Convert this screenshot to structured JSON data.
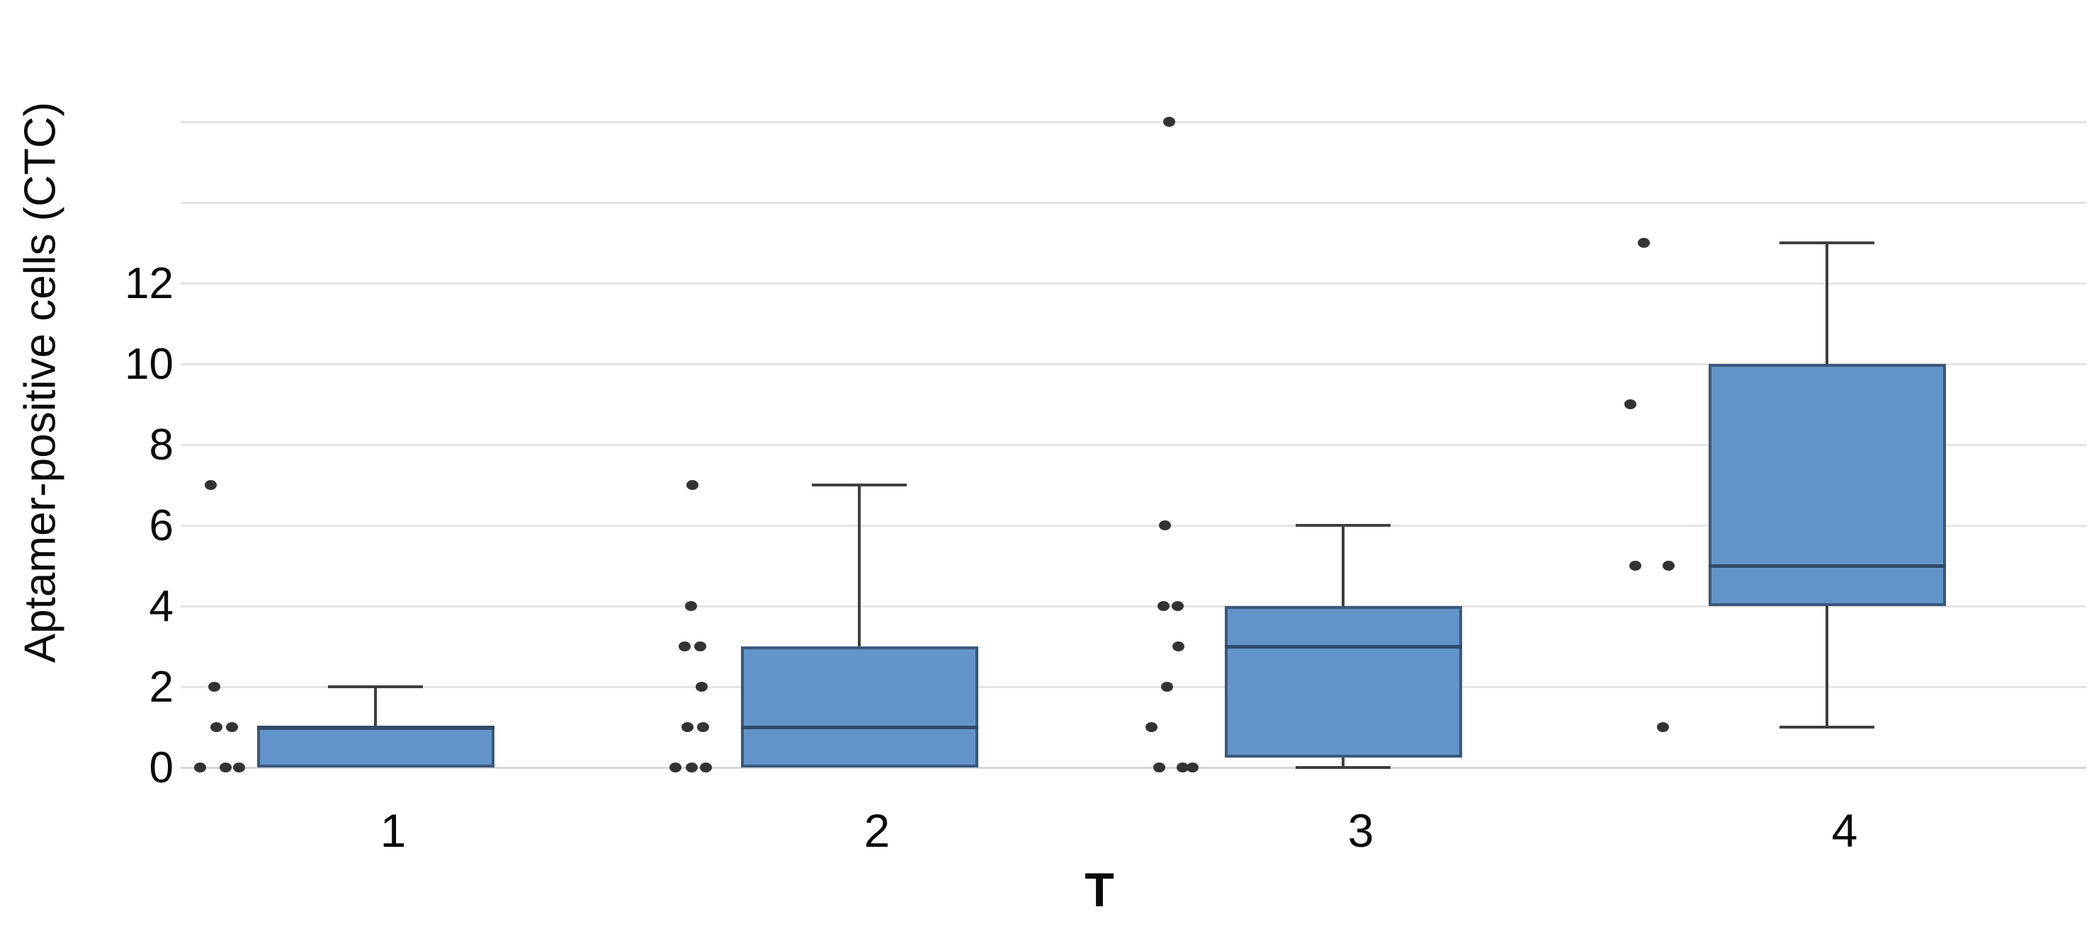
{
  "page": {
    "background": "#ffffff"
  },
  "chart_data": {
    "type": "boxplot",
    "title": "",
    "xlabel": "T",
    "ylabel": "Aptamer-positive cells (CTC)",
    "categories": [
      "1",
      "2",
      "3",
      "4"
    ],
    "ylim": [
      0,
      16
    ],
    "y_ticks_labeled": [
      0,
      2,
      4,
      6,
      8,
      10,
      12
    ],
    "gridline_values": [
      0,
      2,
      4,
      6,
      8,
      10,
      12,
      14,
      16
    ],
    "grid": true,
    "legend": "none",
    "colors": {
      "box_fill": "#6394C9",
      "box_border": "#3A587C",
      "median": "#2F4A6A",
      "whisker": "#3F3F3F",
      "point": "#333333",
      "grid": "#e4e4e4",
      "zero_grid": "#d6d6d6",
      "text": "#0a0a0a"
    },
    "groups": [
      {
        "category": "1",
        "min": 0,
        "q1": 0,
        "median": 1,
        "q3": 1,
        "max": 2,
        "points": [
          {
            "v": 7,
            "dx": -258
          },
          {
            "v": 2,
            "dx": -253
          },
          {
            "v": 1,
            "dx": -250
          },
          {
            "v": 1,
            "dx": -228
          },
          {
            "v": 0,
            "dx": -273
          },
          {
            "v": 0,
            "dx": -237
          },
          {
            "v": 0,
            "dx": -218
          }
        ]
      },
      {
        "category": "2",
        "min": 0,
        "q1": 0,
        "median": 1,
        "q3": 3,
        "max": 7,
        "points": [
          {
            "v": 7,
            "dx": -261
          },
          {
            "v": 4,
            "dx": -263
          },
          {
            "v": 3,
            "dx": -272
          },
          {
            "v": 3,
            "dx": -250
          },
          {
            "v": 2,
            "dx": -248
          },
          {
            "v": 1,
            "dx": -268
          },
          {
            "v": 1,
            "dx": -246
          },
          {
            "v": 0,
            "dx": -285
          },
          {
            "v": 0,
            "dx": -262
          },
          {
            "v": 0,
            "dx": -242
          }
        ]
      },
      {
        "category": "3",
        "min": 0,
        "q1": 0.25,
        "median": 3,
        "q3": 4,
        "max": 6,
        "points": [
          {
            "v": 16,
            "dx": -271
          },
          {
            "v": 6,
            "dx": -277
          },
          {
            "v": 4,
            "dx": -279
          },
          {
            "v": 4,
            "dx": -259
          },
          {
            "v": 3,
            "dx": -258
          },
          {
            "v": 2,
            "dx": -274
          },
          {
            "v": 1,
            "dx": -296
          },
          {
            "v": 0,
            "dx": -285
          },
          {
            "v": 0,
            "dx": -252
          },
          {
            "v": 0,
            "dx": -238
          }
        ]
      },
      {
        "category": "4",
        "min": 1,
        "q1": 4,
        "median": 5,
        "q3": 10,
        "max": 13,
        "points": [
          {
            "v": 13,
            "dx": -284
          },
          {
            "v": 9,
            "dx": -303
          },
          {
            "v": 5,
            "dx": -296
          },
          {
            "v": 5,
            "dx": -249
          },
          {
            "v": 1,
            "dx": -257
          }
        ]
      }
    ]
  }
}
